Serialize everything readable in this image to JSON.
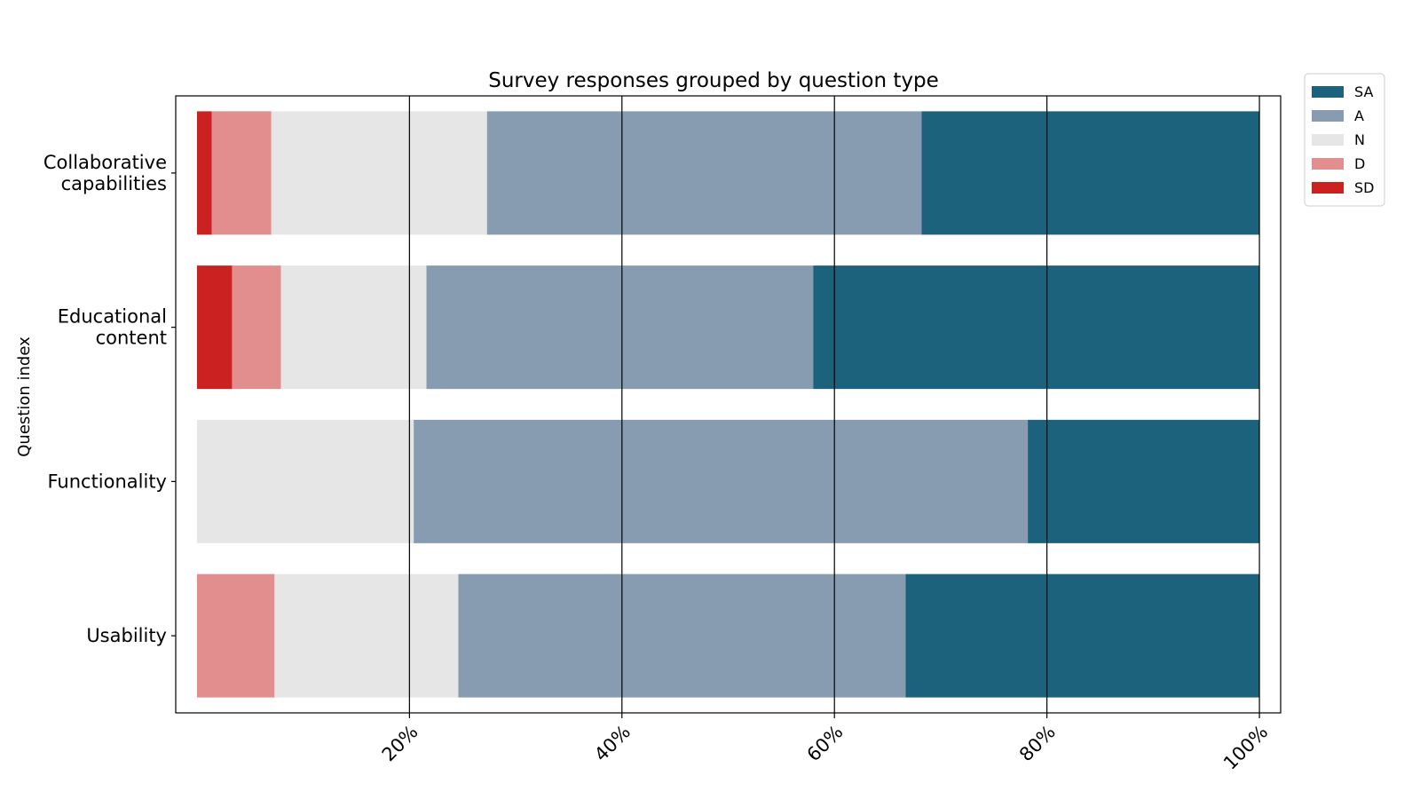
{
  "chart_data": {
    "type": "bar",
    "orientation": "horizontal",
    "stacked": true,
    "title": "Survey responses grouped by question type",
    "xlabel": "",
    "ylabel": "Question index",
    "xlim": [
      -2,
      102
    ],
    "xticks": [
      20,
      40,
      60,
      80,
      100
    ],
    "xtick_labels": [
      "20%",
      "40%",
      "60%",
      "80%",
      "100%"
    ],
    "grid": "vertical lines at ticks",
    "legend_position": "outside top-right",
    "categories": [
      [
        "Collaborative",
        "capabilities"
      ],
      [
        "Educational",
        "content"
      ],
      [
        "Functionality"
      ],
      [
        "Usability"
      ]
    ],
    "series": [
      {
        "name": "SD",
        "color": "#cb2121",
        "values": [
          1.4,
          3.3,
          0,
          0
        ]
      },
      {
        "name": "D",
        "color": "#e28e8e",
        "values": [
          5.6,
          4.6,
          0,
          7.3
        ]
      },
      {
        "name": "N",
        "color": "#e6e6e6",
        "values": [
          20.3,
          13.7,
          20.4,
          17.3
        ]
      },
      {
        "name": "A",
        "color": "#879cb0",
        "values": [
          40.9,
          36.4,
          57.8,
          42.1
        ]
      },
      {
        "name": "SA",
        "color": "#1c627c",
        "values": [
          31.8,
          42.0,
          21.8,
          33.3
        ]
      }
    ],
    "legend_order": [
      "SA",
      "A",
      "N",
      "D",
      "SD"
    ]
  }
}
